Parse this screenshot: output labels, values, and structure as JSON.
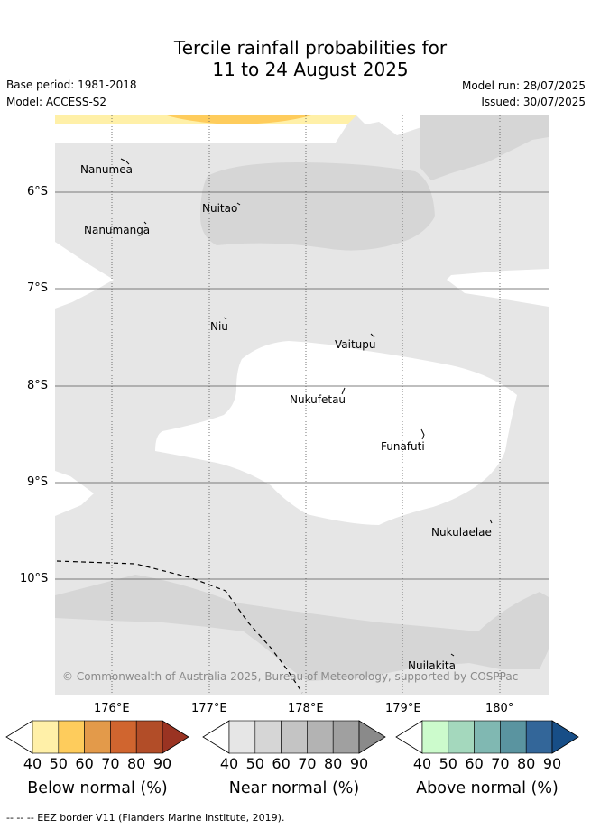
{
  "header": {
    "title_line1": "Tercile rainfall probabilities for",
    "title_line2": "11 to 24 August 2025",
    "base_period": "Base period: 1981-2018",
    "model": "Model: ACCESS-S2",
    "model_run": "Model run: 28/07/2025",
    "issued": "Issued: 30/07/2025"
  },
  "map": {
    "lat_labels": [
      "6°S",
      "7°S",
      "8°S",
      "9°S",
      "10°S"
    ],
    "lon_labels": [
      "176°E",
      "177°E",
      "178°E",
      "179°E",
      "180°"
    ],
    "islands": [
      {
        "name": "Nanumea"
      },
      {
        "name": "Nuitao"
      },
      {
        "name": "Nanumanga"
      },
      {
        "name": "Niu"
      },
      {
        "name": "Vaitupu"
      },
      {
        "name": "Nukufetau"
      },
      {
        "name": "Funafuti"
      },
      {
        "name": "Nukulaelae"
      },
      {
        "name": "Nuilakita"
      }
    ],
    "copyright": "© Commonwealth of Australia 2025, Bureau of Meteorology, supported by COSPPac"
  },
  "colorbars": [
    {
      "label": "Below normal (%)",
      "ticks": [
        "40",
        "50",
        "60",
        "70",
        "80",
        "90"
      ],
      "colors": [
        "#ffffff",
        "#fff0a8",
        "#fecc5c",
        "#e39a4a",
        "#d0652f",
        "#b24d28",
        "#9a3322"
      ]
    },
    {
      "label": "Near normal (%)",
      "ticks": [
        "40",
        "50",
        "60",
        "70",
        "80",
        "90"
      ],
      "colors": [
        "#ffffff",
        "#e6e6e6",
        "#d6d6d6",
        "#c4c4c4",
        "#b3b3b3",
        "#a0a0a0",
        "#8a8a8a"
      ]
    },
    {
      "label": "Above normal (%)",
      "ticks": [
        "40",
        "50",
        "60",
        "70",
        "80",
        "90"
      ],
      "colors": [
        "#ffffff",
        "#ccfbcc",
        "#a4d8bd",
        "#80b8b2",
        "#5a94a0",
        "#336699",
        "#174e87"
      ]
    }
  ],
  "footer": {
    "eez_text": "--  --  -- EEZ border V11 (Flanders Marine Institute, 2019)."
  }
}
